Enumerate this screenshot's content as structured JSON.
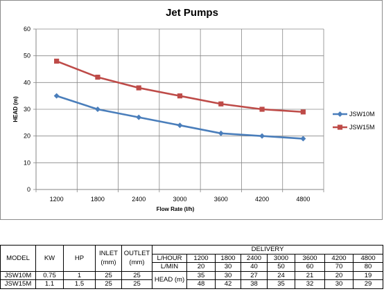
{
  "chart_data": {
    "type": "line",
    "title": "Jet Pumps",
    "xlabel": "Flow Rate (l/h)",
    "ylabel": "HEAD (m)",
    "categories": [
      "1200",
      "1800",
      "2400",
      "3000",
      "3600",
      "4200",
      "4800"
    ],
    "ylim": [
      0,
      60
    ],
    "yticks": [
      "0",
      "10",
      "20",
      "30",
      "40",
      "50",
      "60"
    ],
    "grid": true,
    "legend_position": "right",
    "series": [
      {
        "name": "JSW10M",
        "values": [
          35,
          30,
          27,
          24,
          21,
          20,
          19
        ],
        "color": "#4a7ebb",
        "marker": "diamond"
      },
      {
        "name": "JSW15M",
        "values": [
          48,
          42,
          38,
          35,
          32,
          30,
          29
        ],
        "color": "#be4b48",
        "marker": "square"
      }
    ]
  },
  "table": {
    "headers": {
      "model": "MODEL",
      "kw": "KW",
      "hp": "HP",
      "inlet": "INLET\n(mm)",
      "outlet": "OUTLET\n(mm)",
      "delivery": "DELIVERY",
      "l_hour": "L/HOUR",
      "l_min": "L/MIN",
      "head": "HEAD (m)"
    },
    "l_hour_values": [
      "1200",
      "1800",
      "2400",
      "3000",
      "3600",
      "4200",
      "4800"
    ],
    "l_min_values": [
      "20",
      "30",
      "40",
      "50",
      "60",
      "70",
      "80"
    ],
    "rows": [
      {
        "model": "JSW10M",
        "kw": "0.75",
        "hp": "1",
        "inlet": "25",
        "outlet": "25",
        "head": [
          "35",
          "30",
          "27",
          "24",
          "21",
          "20",
          "19"
        ]
      },
      {
        "model": "JSW15M",
        "kw": "1.1",
        "hp": "1.5",
        "inlet": "25",
        "outlet": "25",
        "head": [
          "48",
          "42",
          "38",
          "35",
          "32",
          "30",
          "29"
        ]
      }
    ]
  }
}
